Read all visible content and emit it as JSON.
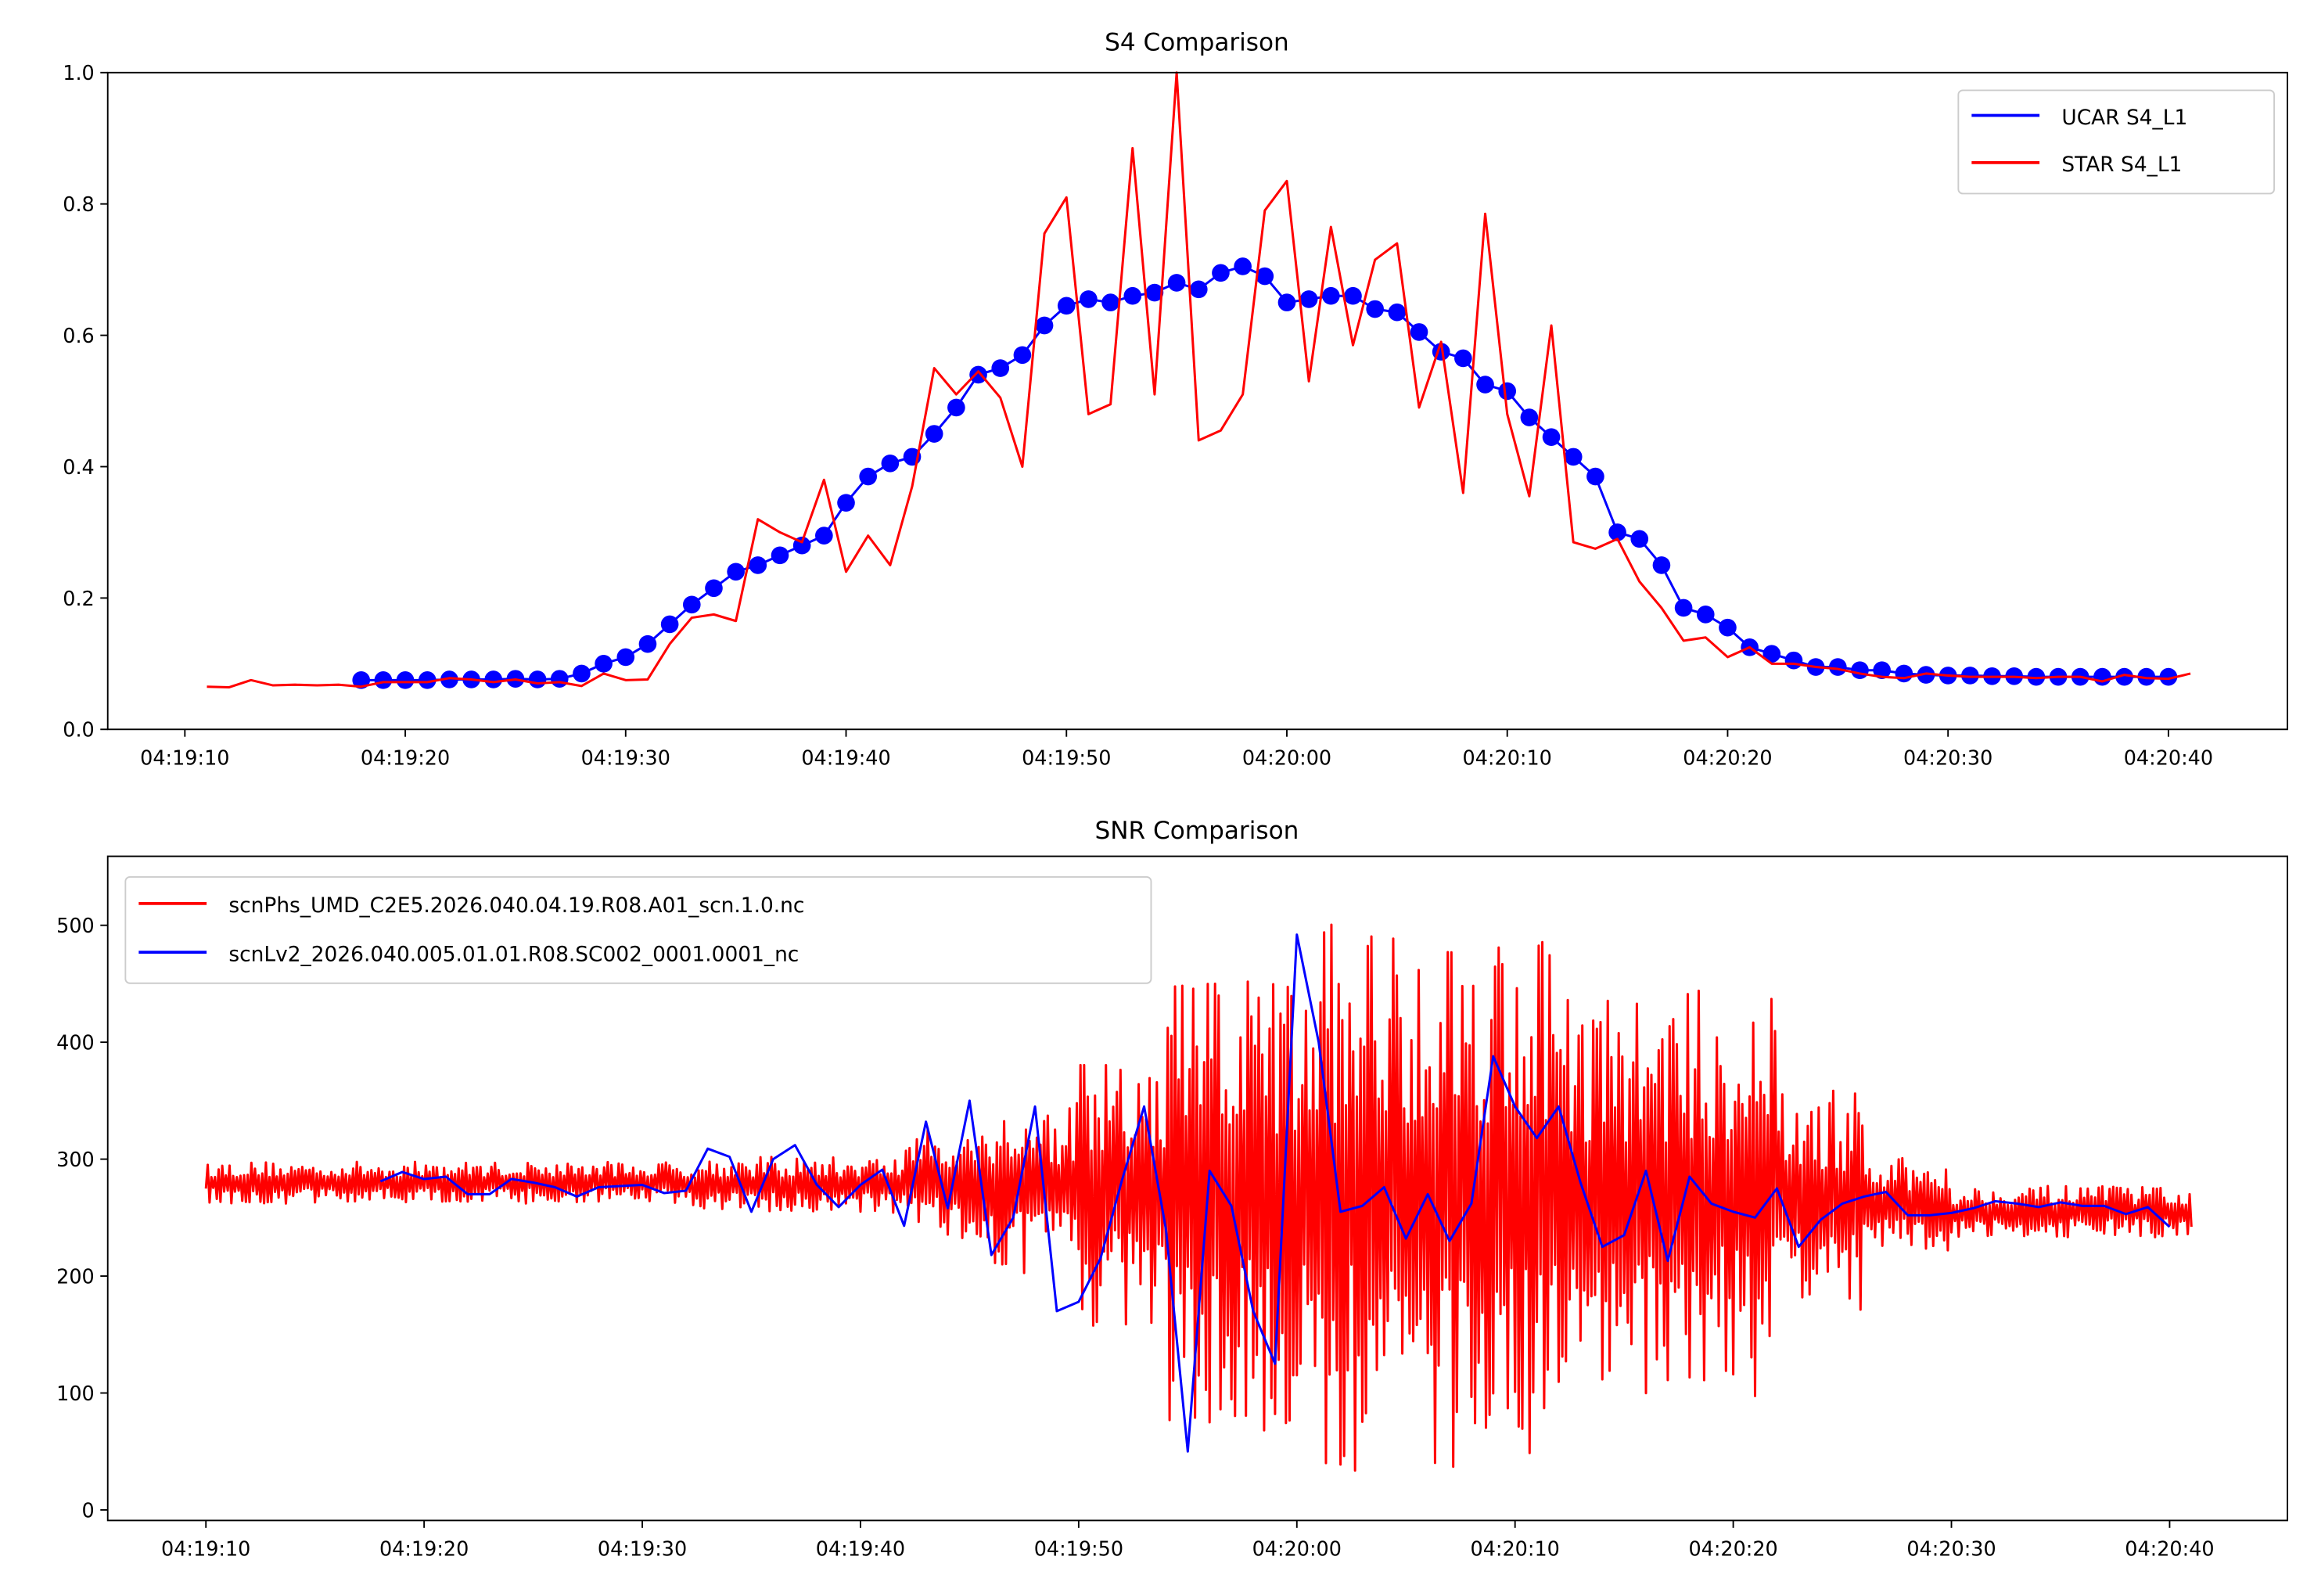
{
  "chart_data": [
    {
      "type": "line",
      "title": "S4 Comparison",
      "xlabel": "",
      "ylabel": "",
      "x_unit": "seconds after 04:19:10",
      "xlim": [
        -3.5,
        95.4
      ],
      "ylim": [
        0,
        1.0
      ],
      "xticks": [
        0,
        10,
        20,
        30,
        40,
        50,
        60,
        70,
        80,
        90
      ],
      "xtick_labels": [
        "04:19:10",
        "04:19:20",
        "04:19:30",
        "04:19:40",
        "04:19:50",
        "04:20:00",
        "04:20:10",
        "04:20:20",
        "04:20:30",
        "04:20:40"
      ],
      "yticks": [
        0,
        0.2,
        0.4,
        0.6,
        0.8,
        1.0
      ],
      "ytick_labels": [
        "0.0",
        "0.2",
        "0.4",
        "0.6",
        "0.8",
        "1.0"
      ],
      "legend_position": "top-right",
      "grid": false,
      "series": [
        {
          "name": "UCAR S4_L1",
          "color": "#0000ff",
          "markers": true,
          "x_start": 8,
          "x_step": 1,
          "values": [
            0.075,
            0.075,
            0.075,
            0.075,
            0.076,
            0.076,
            0.076,
            0.077,
            0.076,
            0.077,
            0.085,
            0.1,
            0.11,
            0.13,
            0.16,
            0.19,
            0.215,
            0.24,
            0.25,
            0.265,
            0.28,
            0.295,
            0.345,
            0.385,
            0.405,
            0.415,
            0.45,
            0.49,
            0.54,
            0.55,
            0.57,
            0.615,
            0.645,
            0.655,
            0.65,
            0.66,
            0.665,
            0.68,
            0.67,
            0.695,
            0.705,
            0.69,
            0.65,
            0.655,
            0.66,
            0.66,
            0.64,
            0.635,
            0.605,
            0.575,
            0.565,
            0.525,
            0.515,
            0.475,
            0.445,
            0.415,
            0.385,
            0.3,
            0.29,
            0.25,
            0.185,
            0.175,
            0.155,
            0.125,
            0.115,
            0.105,
            0.095,
            0.095,
            0.09,
            0.09,
            0.085,
            0.083,
            0.082,
            0.082,
            0.081,
            0.081,
            0.08,
            0.08,
            0.08,
            0.08,
            0.08,
            0.08,
            0.08
          ]
        },
        {
          "name": "STAR S4_L1",
          "color": "#ff0000",
          "markers": false,
          "x_start": 1,
          "x_step": 1,
          "values": [
            0.065,
            0.064,
            0.075,
            0.067,
            0.068,
            0.067,
            0.068,
            0.065,
            0.072,
            0.072,
            0.072,
            0.078,
            0.076,
            0.072,
            0.076,
            0.07,
            0.072,
            0.066,
            0.085,
            0.075,
            0.076,
            0.13,
            0.17,
            0.175,
            0.165,
            0.32,
            0.3,
            0.285,
            0.38,
            0.24,
            0.295,
            0.25,
            0.37,
            0.55,
            0.51,
            0.545,
            0.505,
            0.4,
            0.755,
            0.81,
            0.48,
            0.495,
            0.885,
            0.51,
            1.0,
            0.44,
            0.455,
            0.51,
            0.79,
            0.835,
            0.53,
            0.765,
            0.585,
            0.715,
            0.74,
            0.49,
            0.59,
            0.36,
            0.785,
            0.48,
            0.355,
            0.615,
            0.285,
            0.275,
            0.29,
            0.225,
            0.185,
            0.135,
            0.14,
            0.11,
            0.125,
            0.1,
            0.1,
            0.095,
            0.092,
            0.085,
            0.08,
            0.078,
            0.085,
            0.082,
            0.08,
            0.08,
            0.08,
            0.078,
            0.08,
            0.08,
            0.073,
            0.083,
            0.078,
            0.077,
            0.085
          ]
        }
      ]
    },
    {
      "type": "line",
      "title": "SNR Comparison",
      "xlabel": "",
      "ylabel": "",
      "x_unit": "seconds after 04:19:10",
      "xlim": [
        -4.5,
        95.4
      ],
      "ylim": [
        -9,
        559
      ],
      "xticks": [
        0,
        10,
        20,
        30,
        40,
        50,
        60,
        70,
        80,
        90
      ],
      "xtick_labels": [
        "04:19:10",
        "04:19:20",
        "04:19:30",
        "04:19:40",
        "04:19:50",
        "04:20:00",
        "04:20:10",
        "04:20:20",
        "04:20:30",
        "04:20:40"
      ],
      "yticks": [
        0,
        100,
        200,
        300,
        400,
        500
      ],
      "ytick_labels": [
        "0",
        "100",
        "200",
        "300",
        "400",
        "500"
      ],
      "legend_position": "top-left",
      "grid": false,
      "series": [
        {
          "name": "scnPhs_UMD_C2E5.2026.040.04.19.R08.A01_scn.1.0.nc",
          "color": "#ff0000",
          "kind": "high-rate envelope (per-segment mean and half-range)",
          "x_range": [
            0,
            91
          ],
          "envelope": [
            {
              "from": 0,
              "to": 22,
              "mean": 280,
              "half_range": 18
            },
            {
              "from": 22,
              "to": 32,
              "mean": 278,
              "half_range": 24
            },
            {
              "from": 32,
              "to": 36,
              "mean": 280,
              "half_range": 48
            },
            {
              "from": 36,
              "to": 40,
              "mean": 275,
              "half_range": 75
            },
            {
              "from": 40,
              "to": 44,
              "mean": 270,
              "half_range": 115
            },
            {
              "from": 44,
              "to": 51,
              "mean": 265,
              "half_range": 200
            },
            {
              "from": 51,
              "to": 62,
              "mean": 270,
              "half_range": 240
            },
            {
              "from": 62,
              "to": 72,
              "mean": 270,
              "half_range": 175
            },
            {
              "from": 72,
              "to": 76,
              "mean": 265,
              "half_range": 95
            },
            {
              "from": 76,
              "to": 80,
              "mean": 260,
              "half_range": 42
            },
            {
              "from": 80,
              "to": 91,
              "mean": 255,
              "half_range": 22
            }
          ]
        },
        {
          "name": "scnLv2_2026.040.005.01.01.R08.SC002_0001.0001_nc",
          "color": "#0000ff",
          "x_start": 8,
          "x_step": 1,
          "values": [
            281,
            289,
            283,
            285,
            270,
            270,
            283,
            280,
            276,
            268,
            276,
            277,
            278,
            271,
            273,
            309,
            302,
            255,
            300,
            312,
            278,
            259,
            278,
            291,
            243,
            332,
            258,
            350,
            218,
            250,
            345,
            170,
            178,
            215,
            283,
            345,
            240,
            50,
            290,
            260,
            170,
            125,
            492,
            400,
            255,
            260,
            276,
            232,
            270,
            230,
            262,
            388,
            345,
            318,
            345,
            280,
            225,
            235,
            290,
            213,
            285,
            262,
            255,
            250,
            275,
            225,
            248,
            262,
            268,
            272,
            252,
            252,
            254,
            258,
            264,
            262,
            259,
            263,
            260,
            260,
            253,
            259,
            242
          ]
        }
      ]
    }
  ]
}
